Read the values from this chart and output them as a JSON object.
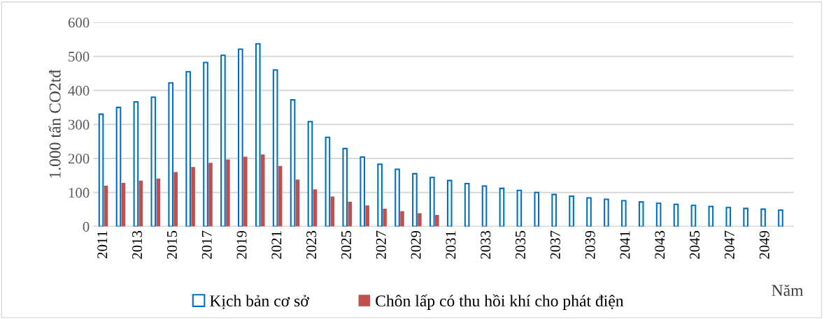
{
  "chart_data": {
    "type": "bar",
    "ylabel": "1.000 tấn CO2tđ",
    "xlabel": "Năm",
    "categories": [
      "2011",
      null,
      "2013",
      null,
      "2015",
      null,
      "2017",
      null,
      "2019",
      null,
      "2021",
      null,
      "2023",
      null,
      "2025",
      null,
      "2027",
      null,
      "2029",
      null,
      "2031",
      null,
      "2033",
      null,
      "2035",
      null,
      "2037",
      null,
      "2039",
      null,
      "2041",
      null,
      "2043",
      null,
      "2045",
      null,
      "2047",
      null,
      "2049",
      null
    ],
    "series": [
      {
        "name": "Kịch bản cơ sở",
        "color": "#0070c0",
        "values": [
          330,
          350,
          366,
          380,
          422,
          455,
          482,
          503,
          521,
          537,
          460,
          372,
          308,
          262,
          229,
          204,
          183,
          168,
          155,
          144,
          135,
          126,
          119,
          112,
          106,
          100,
          94,
          89,
          84,
          80,
          76,
          72,
          68,
          65,
          62,
          59,
          56,
          53,
          51,
          48
        ]
      },
      {
        "name": "Chôn lấp có thu hồi khí cho phát điện",
        "color": "#c0504d",
        "values": [
          120,
          128,
          135,
          141,
          160,
          175,
          187,
          197,
          205,
          212,
          178,
          138,
          109,
          88,
          73,
          62,
          52,
          45,
          39,
          34,
          null,
          null,
          null,
          null,
          null,
          null,
          null,
          null,
          null,
          null,
          null,
          null,
          null,
          null,
          null,
          null,
          null,
          null,
          null,
          null
        ]
      }
    ],
    "ylim": [
      0,
      600
    ],
    "yticks": [
      0,
      100,
      200,
      300,
      400,
      500,
      600
    ],
    "grid": "y",
    "legend": "bottom"
  }
}
